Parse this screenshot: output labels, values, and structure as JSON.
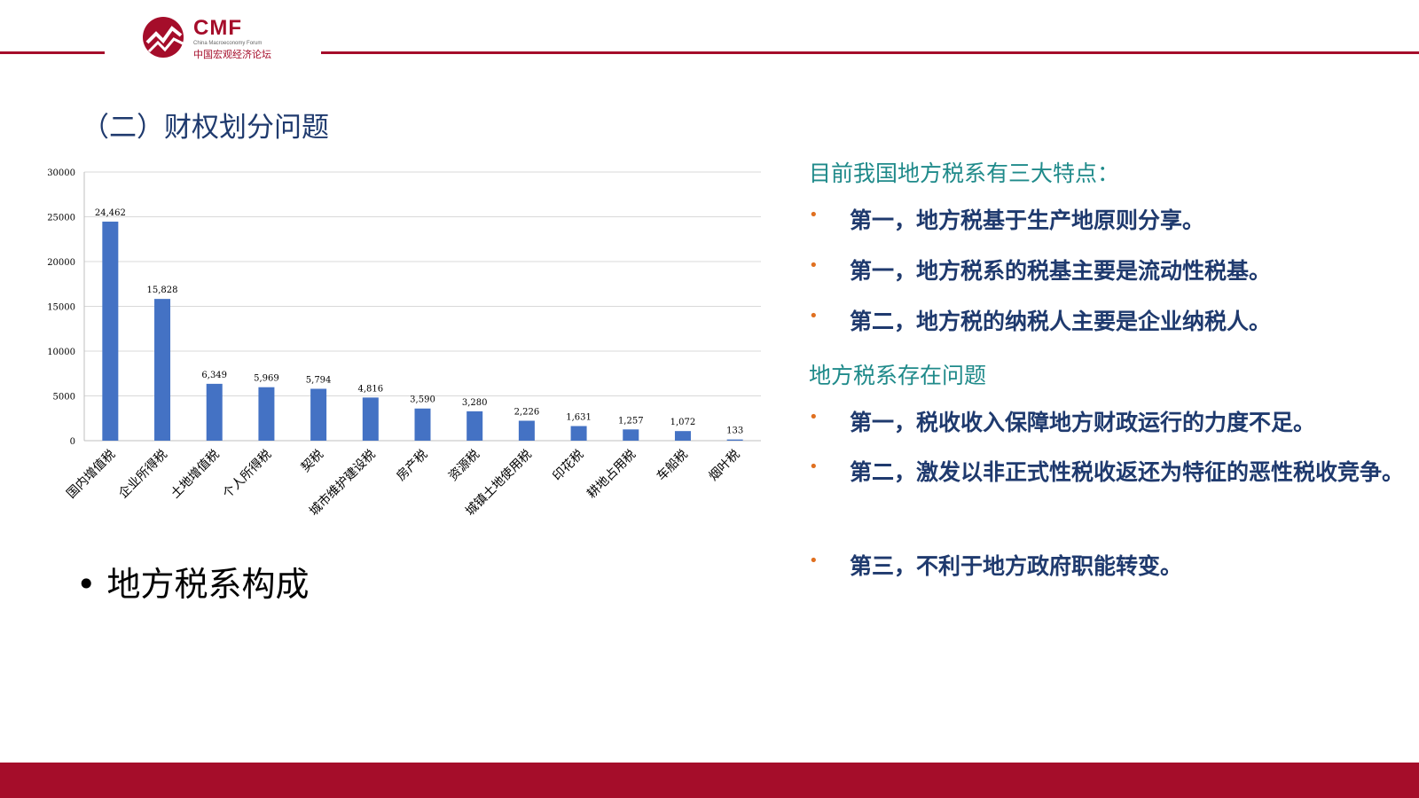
{
  "logo": {
    "brand": "CMF",
    "subtitle_en": "China Macroeconomy Forum",
    "subtitle_cn": "中国宏观经济论坛"
  },
  "page_title": "（二）财权划分问题",
  "left_bullet": "地方税系构成",
  "right_panel": {
    "heading1": "目前我国地方税系有三大特点：",
    "items1": [
      "第一，地方税基于生产地原则分享。",
      "第一，地方税系的税基主要是流动性税基。",
      "第二，地方税的纳税人主要是企业纳税人。"
    ],
    "heading2": "地方税系存在问题",
    "items2": [
      "第一，税收收入保障地方财政运行的力度不足。",
      "第二，激发以非正式性税收返还为特征的恶性税收竞争。",
      "第三，不利于地方政府职能转变。"
    ]
  },
  "colors": {
    "brand_red": "#a50d2a",
    "title_blue": "#1f3a6e",
    "heading_teal": "#1f8a8a",
    "bullet_orange": "#e07020",
    "bar_blue": "#4472c4"
  },
  "chart_data": {
    "type": "bar",
    "categories": [
      "国内增值税",
      "企业所得税",
      "土地增值税",
      "个人所得税",
      "契税",
      "城市维护建设税",
      "房产税",
      "资源税",
      "城镇土地使用税",
      "印花税",
      "耕地占用税",
      "车船税",
      "烟叶税"
    ],
    "values": [
      24462,
      15828,
      6349,
      5969,
      5794,
      4816,
      3590,
      3280,
      2226,
      1631,
      1257,
      1072,
      133
    ],
    "value_labels": [
      "24,462",
      "15,828",
      "6,349",
      "5,969",
      "5,794",
      "4,816",
      "3,590",
      "3,280",
      "2,226",
      "1,631",
      "1,257",
      "1,072",
      "133"
    ],
    "y_ticks": [
      0,
      5000,
      10000,
      15000,
      20000,
      25000,
      30000
    ],
    "ylim": [
      0,
      30000
    ],
    "grid": true,
    "title": "",
    "xlabel": "",
    "ylabel": ""
  }
}
